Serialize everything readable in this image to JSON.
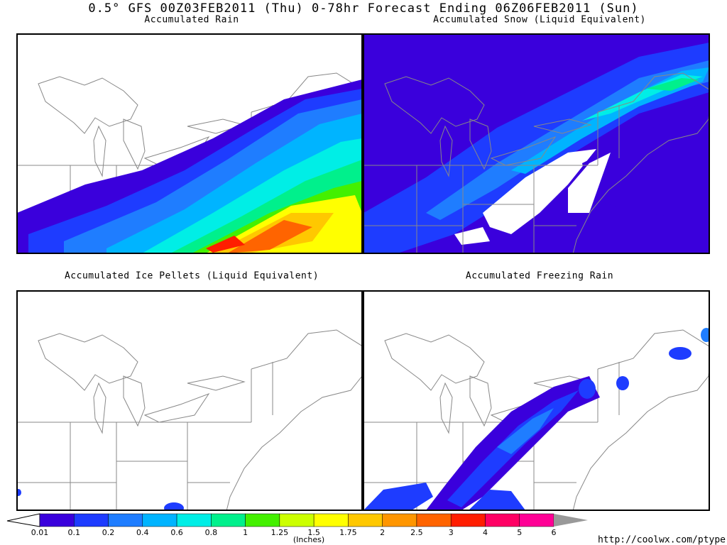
{
  "header": {
    "title": "0.5° GFS 00Z03FEB2011 (Thu) 0-78hr Forecast Ending 06Z06FEB2011 (Sun)"
  },
  "panels": [
    {
      "title": "Accumulated Rain"
    },
    {
      "title": "Accumulated Snow (Liquid Equivalent)"
    },
    {
      "title": "Accumulated Ice Pellets (Liquid Equivalent)"
    },
    {
      "title": "Accumulated Freezing Rain"
    }
  ],
  "colorbar": {
    "labels": [
      "0.01",
      "0.1",
      "0.2",
      "0.4",
      "0.6",
      "0.8",
      "1",
      "1.25",
      "1.5",
      "1.75",
      "2",
      "2.5",
      "3",
      "4",
      "5",
      "6"
    ],
    "colors": [
      "#3a00dc",
      "#1e3cff",
      "#1f7dff",
      "#00b4ff",
      "#00eee6",
      "#00f08c",
      "#44f000",
      "#ccff00",
      "#ffff00",
      "#ffc800",
      "#ff9600",
      "#ff6400",
      "#ff1e00",
      "#ff0064",
      "#ff0096",
      "#000000"
    ],
    "unit": "(Inches)"
  },
  "footer": {
    "url": "http://coolwx.com/ptype"
  }
}
